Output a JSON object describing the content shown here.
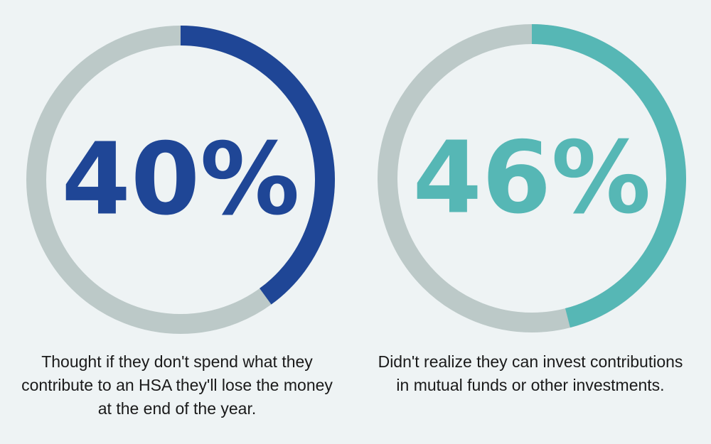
{
  "chart_data": [
    {
      "type": "pie",
      "value": 40,
      "label": "40%",
      "caption": "Thought if they don't spend what they contribute to an HSA they'll lose the money at the end of the year.",
      "color": "#1f4696",
      "track_color": "#bcc9c8"
    },
    {
      "type": "pie",
      "value": 46,
      "label": "46%",
      "caption": "Didn't realize they can invest contributions in mutual funds or other investments.",
      "color": "#56b7b5",
      "track_color": "#bcc9c8"
    }
  ]
}
